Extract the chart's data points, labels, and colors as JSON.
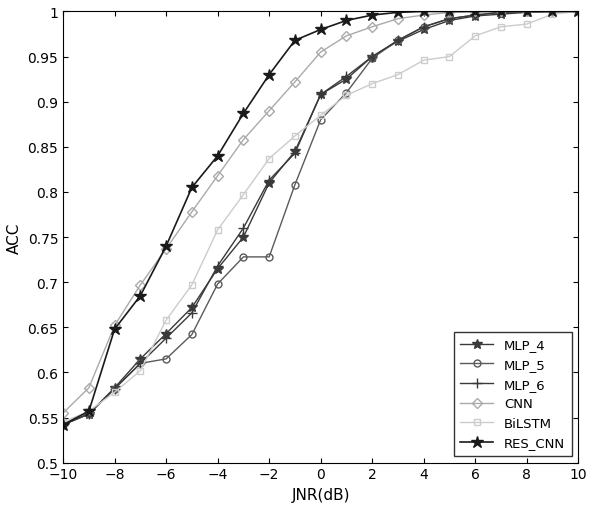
{
  "x": [
    -10,
    -9,
    -8,
    -7,
    -6,
    -5,
    -4,
    -3,
    -2,
    -1,
    0,
    1,
    2,
    3,
    4,
    5,
    6,
    7,
    8,
    9,
    10
  ],
  "MLP_4": [
    0.542,
    0.554,
    0.583,
    0.615,
    0.643,
    0.672,
    0.715,
    0.75,
    0.81,
    0.845,
    0.908,
    0.925,
    0.95,
    0.967,
    0.98,
    0.99,
    0.995,
    0.997,
    0.999,
    1.0,
    1.0
  ],
  "MLP_5": [
    0.542,
    0.554,
    0.582,
    0.61,
    0.615,
    0.642,
    0.698,
    0.728,
    0.728,
    0.808,
    0.88,
    0.91,
    0.948,
    0.968,
    0.983,
    0.992,
    0.996,
    0.999,
    1.0,
    1.0,
    1.0
  ],
  "MLP_6": [
    0.542,
    0.554,
    0.582,
    0.61,
    0.638,
    0.666,
    0.718,
    0.76,
    0.813,
    0.843,
    0.908,
    0.928,
    0.95,
    0.968,
    0.983,
    0.992,
    0.996,
    0.999,
    1.0,
    1.0,
    1.0
  ],
  "CNN": [
    0.555,
    0.583,
    0.652,
    0.697,
    0.737,
    0.778,
    0.818,
    0.858,
    0.89,
    0.922,
    0.955,
    0.973,
    0.983,
    0.992,
    0.996,
    0.999,
    1.0,
    1.0,
    1.0,
    1.0,
    1.0
  ],
  "BiLSTM": [
    0.545,
    0.557,
    0.578,
    0.602,
    0.658,
    0.697,
    0.758,
    0.797,
    0.837,
    0.862,
    0.885,
    0.907,
    0.92,
    0.93,
    0.946,
    0.95,
    0.973,
    0.983,
    0.986,
    0.997,
    1.0
  ],
  "RES_CNN": [
    0.542,
    0.557,
    0.648,
    0.685,
    0.74,
    0.805,
    0.84,
    0.887,
    0.93,
    0.968,
    0.98,
    0.99,
    0.996,
    0.999,
    1.0,
    1.0,
    1.0,
    1.0,
    1.0,
    1.0,
    1.0
  ],
  "line_styles": {
    "MLP_4": {
      "color": "#3a3a3a",
      "marker": "*",
      "markersize": 7,
      "linewidth": 1.0,
      "markerfacecolor": "#3a3a3a"
    },
    "MLP_5": {
      "color": "#5a5a5a",
      "marker": "o",
      "markersize": 5,
      "linewidth": 1.0,
      "markerfacecolor": "none"
    },
    "MLP_6": {
      "color": "#3a3a3a",
      "marker": "+",
      "markersize": 7,
      "linewidth": 1.0,
      "markerfacecolor": "#3a3a3a"
    },
    "CNN": {
      "color": "#aaaaaa",
      "marker": "D",
      "markersize": 5,
      "linewidth": 1.0,
      "markerfacecolor": "none"
    },
    "BiLSTM": {
      "color": "#cccccc",
      "marker": "s",
      "markersize": 5,
      "linewidth": 1.0,
      "markerfacecolor": "none"
    },
    "RES_CNN": {
      "color": "#1a1a1a",
      "marker": "*",
      "markersize": 9,
      "linewidth": 1.2,
      "markerfacecolor": "#1a1a1a"
    }
  },
  "xlabel": "JNR(dB)",
  "ylabel": "ACC",
  "xlim": [
    -10,
    10
  ],
  "ylim": [
    0.5,
    1.0
  ],
  "xticks": [
    -10,
    -8,
    -6,
    -4,
    -2,
    0,
    2,
    4,
    6,
    8,
    10
  ],
  "yticks": [
    0.5,
    0.55,
    0.6,
    0.65,
    0.7,
    0.75,
    0.8,
    0.85,
    0.9,
    0.95,
    1.0
  ],
  "legend_loc": "lower right",
  "font_size": 11
}
